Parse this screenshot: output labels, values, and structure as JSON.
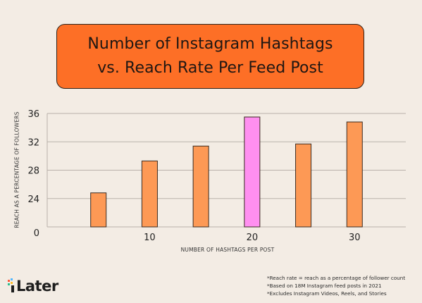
{
  "colors": {
    "background": "#f3ece4",
    "title_box": "#fd6f26",
    "bar": "#fd9955",
    "bar_highlight": "#ff8ff0",
    "bar_stroke": "#3a2a20",
    "grid": "#b9b1aa"
  },
  "chart_data": {
    "type": "bar",
    "title_lines": [
      "Number of Instagram Hashtags",
      "vs. Reach Rate Per Feed Post"
    ],
    "xlabel": "NUMBER OF HASHTAGS PER POST",
    "ylabel": "REACH AS A PERCENTAGE OF FOLLOWERS",
    "x": [
      5,
      10,
      15,
      20,
      25,
      30
    ],
    "values": [
      24.8,
      29.3,
      31.4,
      35.5,
      31.7,
      34.8
    ],
    "highlight_index": 3,
    "xlim": [
      0,
      35
    ],
    "ylim": [
      20,
      36
    ],
    "yticks": [
      24,
      28,
      32,
      36
    ],
    "xticks": [
      10,
      20,
      30
    ],
    "origin_label": "0",
    "grid": true
  },
  "footer": {
    "logo_text": "Later",
    "logo_icon": "later-logo-icon",
    "notes": [
      "*Reach rate = reach as a percentage of follower count",
      "*Based on 18M Instagram feed posts in 2021",
      "*Excludes Instagram Videos, Reels, and Stories"
    ]
  }
}
